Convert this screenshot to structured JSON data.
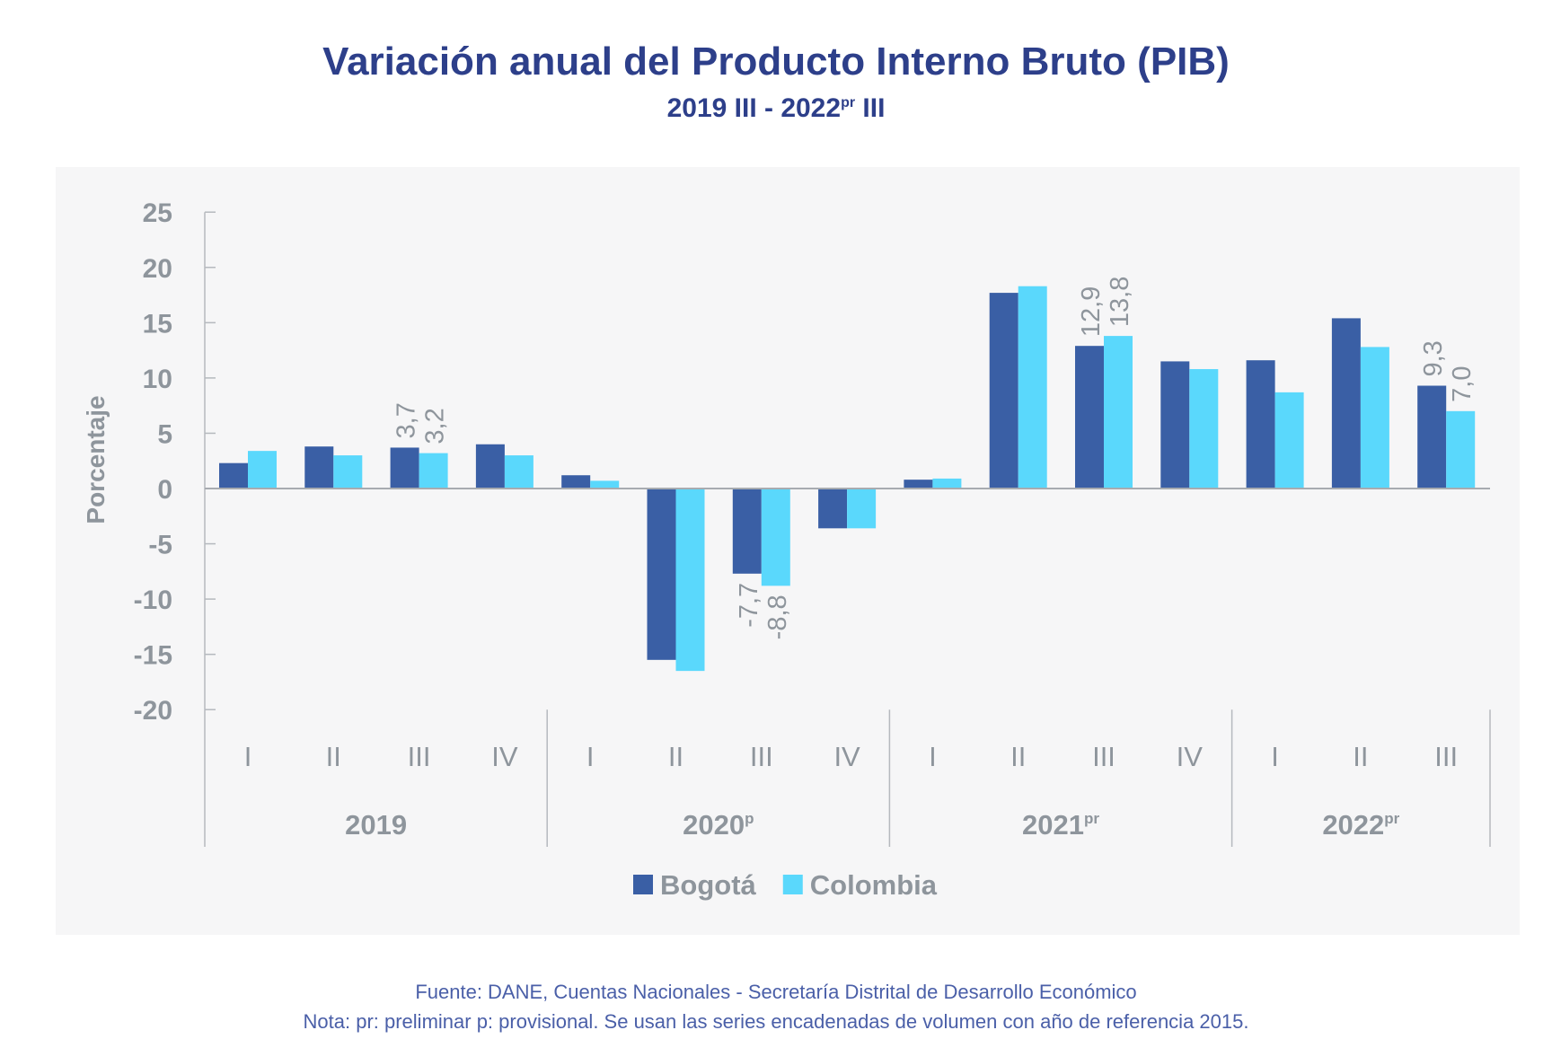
{
  "title": "Variación anual del Producto Interno Bruto (PIB)",
  "subtitle": {
    "main": "2019 III - 2022",
    "sup": "pr",
    "end": " III"
  },
  "footer": {
    "source": "Fuente: DANE, Cuentas Nacionales - Secretaría Distrital de Desarrollo Económico",
    "note": "Nota: pr: preliminar  p: provisional. Se usan las series encadenadas de volumen con año de referencia 2015."
  },
  "chart_data": {
    "type": "bar",
    "ylabel": "Porcentaje",
    "ylim": [
      -20,
      25
    ],
    "yticks": [
      25,
      20,
      15,
      10,
      5,
      0,
      -5,
      -10,
      -15,
      -20
    ],
    "grid": false,
    "legend_position": "bottom",
    "categories": [
      "I",
      "II",
      "III",
      "IV",
      "I",
      "II",
      "III",
      "IV",
      "I",
      "II",
      "III",
      "IV",
      "I",
      "II",
      "III"
    ],
    "groups": [
      {
        "label": "2019",
        "sup": "",
        "count": 4
      },
      {
        "label": "2020",
        "sup": "p",
        "count": 4
      },
      {
        "label": "2021",
        "sup": "pr",
        "count": 4
      },
      {
        "label": "2022",
        "sup": "pr",
        "count": 3
      }
    ],
    "series": [
      {
        "name": "Bogotá",
        "color": "#3a5fa5",
        "values": [
          2.3,
          3.8,
          3.7,
          4.0,
          1.2,
          -15.5,
          -7.7,
          -3.6,
          0.8,
          17.7,
          12.9,
          11.5,
          11.6,
          15.4,
          9.3
        ]
      },
      {
        "name": "Colombia",
        "color": "#5ad8fc",
        "values": [
          3.4,
          3.0,
          3.2,
          3.0,
          0.7,
          -16.5,
          -8.8,
          -3.6,
          0.9,
          18.3,
          13.8,
          10.8,
          8.7,
          12.8,
          7.0
        ]
      }
    ],
    "data_labels": [
      {
        "series": 0,
        "index": 2,
        "text": "3,7"
      },
      {
        "series": 1,
        "index": 2,
        "text": "3,2"
      },
      {
        "series": 0,
        "index": 6,
        "text": "-7,7"
      },
      {
        "series": 1,
        "index": 6,
        "text": "-8,8"
      },
      {
        "series": 0,
        "index": 10,
        "text": "12,9"
      },
      {
        "series": 1,
        "index": 10,
        "text": "13,8"
      },
      {
        "series": 0,
        "index": 14,
        "text": "9,3"
      },
      {
        "series": 1,
        "index": 14,
        "text": "7,0"
      }
    ]
  }
}
